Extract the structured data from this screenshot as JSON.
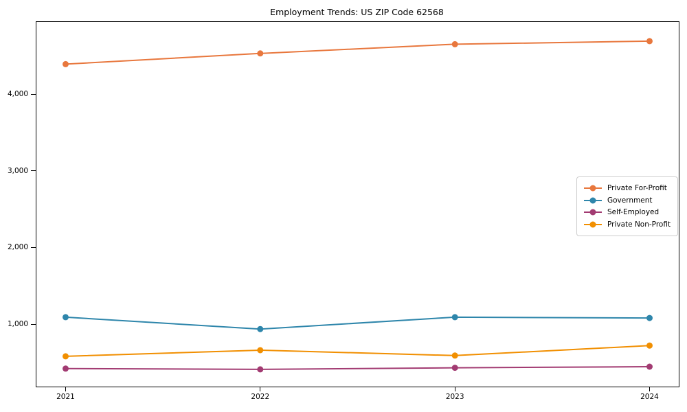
{
  "figure": {
    "title": "Employment Trends: US ZIP Code 62568"
  },
  "chart_data": {
    "type": "line",
    "title": "Employment Trends: US ZIP Code 62568",
    "xlabel": "",
    "ylabel": "",
    "x": [
      2021,
      2022,
      2023,
      2024
    ],
    "x_tick_labels": [
      "2021",
      "2022",
      "2023",
      "2024"
    ],
    "series": [
      {
        "name": "Private For-Profit",
        "color": "#E8773D",
        "values": [
          4390,
          4530,
          4650,
          4690
        ]
      },
      {
        "name": "Government",
        "color": "#2E86AB",
        "values": [
          1090,
          935,
          1090,
          1080
        ]
      },
      {
        "name": "Self-Employed",
        "color": "#A23B72",
        "values": [
          420,
          410,
          430,
          445
        ]
      },
      {
        "name": "Private Non-Profit",
        "color": "#F18F01",
        "values": [
          580,
          660,
          590,
          720
        ]
      }
    ],
    "y_ticks": [
      {
        "value": 1000,
        "label": "1,000"
      },
      {
        "value": 2000,
        "label": "2,000"
      },
      {
        "value": 3000,
        "label": "3,000"
      },
      {
        "value": 4000,
        "label": "4,000"
      }
    ],
    "xlim": [
      2020.85,
      2024.15
    ],
    "ylim": [
      185,
      4940
    ],
    "grid": false,
    "legend_position": "center right",
    "marker": "circle",
    "line_width": 2,
    "marker_radius": 4.5
  }
}
